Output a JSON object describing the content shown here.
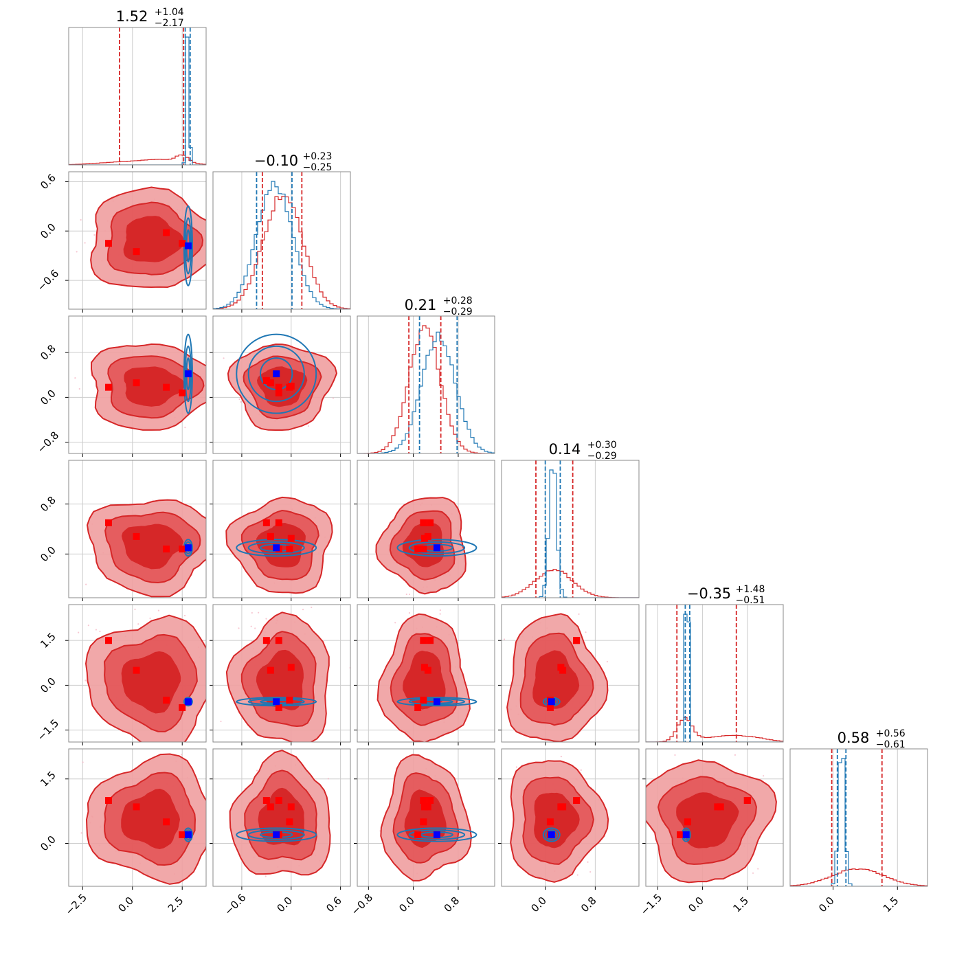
{
  "chart_data": {
    "type": "corner",
    "parameters": 6,
    "grid": true,
    "colors": {
      "red": "#d62728",
      "red_light": "#ef9ea0",
      "red_mid": "#e4595b",
      "blue": "#1f77b4",
      "truth_blue": "#0000ff",
      "truth_red": "#ff0000",
      "frame": "#888888",
      "grid": "#cccccc"
    },
    "titles": [
      {
        "main": "1.52",
        "sup": "+1.04",
        "sub": "−2.17"
      },
      {
        "main": "−0.10",
        "sup": "+0.23",
        "sub": "−0.25"
      },
      {
        "main": "0.21",
        "sup": "+0.28",
        "sub": "−0.29"
      },
      {
        "main": "0.14",
        "sup": "+0.30",
        "sub": "−0.29"
      },
      {
        "main": "−0.35",
        "sup": "+1.48",
        "sub": "−0.51"
      },
      {
        "main": "0.58",
        "sup": "+0.56",
        "sub": "−0.61"
      }
    ],
    "ranges": [
      [
        -3.2,
        3.7
      ],
      [
        -0.95,
        0.72
      ],
      [
        -1.0,
        1.45
      ],
      [
        -0.7,
        1.5
      ],
      [
        -1.9,
        2.7
      ],
      [
        -1.0,
        2.2
      ]
    ],
    "x_ticks": [
      {
        "values": [
          -2.5,
          0.0,
          2.5
        ],
        "labels": [
          "−2.5",
          "0.0",
          "2.5"
        ]
      },
      {
        "values": [
          -0.6,
          0.0,
          0.6
        ],
        "labels": [
          "−0.6",
          "0.0",
          "0.6"
        ]
      },
      {
        "values": [
          -0.8,
          0.0,
          0.8
        ],
        "labels": [
          "−0.8",
          "0.0",
          "0.8"
        ]
      },
      {
        "values": [
          0.0,
          0.8
        ],
        "labels": [
          "0.0",
          "0.8"
        ]
      },
      {
        "values": [
          -1.5,
          0.0,
          1.5
        ],
        "labels": [
          "−1.5",
          "0.0",
          "1.5"
        ]
      },
      {
        "values": [
          0.0,
          1.5
        ],
        "labels": [
          "0.0",
          "1.5"
        ]
      }
    ],
    "y_ticks": [
      null,
      {
        "values": [
          0.6,
          0.0,
          -0.6
        ],
        "labels": [
          "0.6",
          "0.0",
          "−0.6"
        ]
      },
      {
        "values": [
          0.8,
          0.0,
          -0.8
        ],
        "labels": [
          "0.8",
          "0.0",
          "−0.8"
        ]
      },
      {
        "values": [
          0.8,
          0.0
        ],
        "labels": [
          "0.8",
          "0.0"
        ]
      },
      {
        "values": [
          1.5,
          0.0,
          -1.5
        ],
        "labels": [
          "1.5",
          "0.0",
          "−1.5"
        ]
      },
      {
        "values": [
          1.5,
          0.0
        ],
        "labels": [
          "1.5",
          "0.0"
        ]
      }
    ],
    "quantiles_red": [
      [
        -0.65,
        2.56
      ],
      [
        -0.35,
        0.13
      ],
      [
        -0.08,
        0.49
      ],
      [
        -0.15,
        0.44
      ],
      [
        -0.86,
        1.13
      ],
      [
        -0.03,
        1.14
      ]
    ],
    "quantiles_blue": [
      [
        2.65,
        2.9
      ],
      [
        -0.42,
        0.01
      ],
      [
        0.11,
        0.78
      ],
      [
        0.0,
        0.24
      ],
      [
        -0.58,
        -0.43
      ],
      [
        0.1,
        0.3
      ]
    ],
    "truth_red": [
      [
        -1.2,
        -0.15,
        0.18,
        0.5,
        1.5,
        1.0
      ],
      [
        0.2,
        -0.25,
        0.26,
        0.28,
        0.5,
        0.85
      ],
      [
        1.7,
        -0.02,
        0.18,
        0.08,
        -0.5,
        0.5
      ],
      [
        2.5,
        -0.15,
        0.08,
        0.08,
        -0.75,
        0.2
      ],
      [
        null,
        -0.3,
        0.3,
        0.5,
        1.5,
        1.0
      ],
      [
        null,
        0.0,
        0.2,
        0.25,
        0.6,
        0.85
      ]
    ],
    "truth_blue": [
      2.8,
      -0.18,
      0.42,
      0.1,
      -0.55,
      0.2
    ],
    "marginals": [
      {
        "red": {
          "mu": [
            -0.5,
            1.6,
            2.5
          ],
          "sd": [
            1.3,
            1.0,
            0.3
          ],
          "w": [
            0.35,
            0.45,
            0.2
          ]
        },
        "blue": {
          "mu": [
            2.78
          ],
          "sd": [
            0.07
          ],
          "w": [
            1
          ]
        }
      },
      {
        "red": {
          "mu": [
            -0.1
          ],
          "sd": [
            0.24
          ],
          "w": [
            1
          ]
        },
        "blue": {
          "mu": [
            -0.2
          ],
          "sd": [
            0.22
          ],
          "w": [
            1
          ]
        }
      },
      {
        "red": {
          "mu": [
            0.2
          ],
          "sd": [
            0.28
          ],
          "w": [
            1
          ]
        },
        "blue": {
          "mu": [
            0.45
          ],
          "sd": [
            0.3
          ],
          "w": [
            1
          ]
        }
      },
      {
        "red": {
          "mu": [
            0.14
          ],
          "sd": [
            0.3
          ],
          "w": [
            1
          ]
        },
        "blue": {
          "mu": [
            0.12
          ],
          "sd": [
            0.06
          ],
          "w": [
            1
          ]
        }
      },
      {
        "red": {
          "mu": [
            -0.6,
            0.6,
            1.6
          ],
          "sd": [
            0.25,
            0.7,
            0.6
          ],
          "w": [
            0.5,
            0.3,
            0.2
          ]
        },
        "blue": {
          "mu": [
            -0.52
          ],
          "sd": [
            0.04
          ],
          "w": [
            1
          ]
        }
      },
      {
        "red": {
          "mu": [
            0.58
          ],
          "sd": [
            0.6
          ],
          "w": [
            1
          ]
        },
        "blue": {
          "mu": [
            0.2
          ],
          "sd": [
            0.07
          ],
          "w": [
            1
          ]
        }
      }
    ],
    "blue_2d_sd": [
      0.06,
      0.22,
      0.32,
      0.06,
      0.04,
      0.07
    ]
  }
}
